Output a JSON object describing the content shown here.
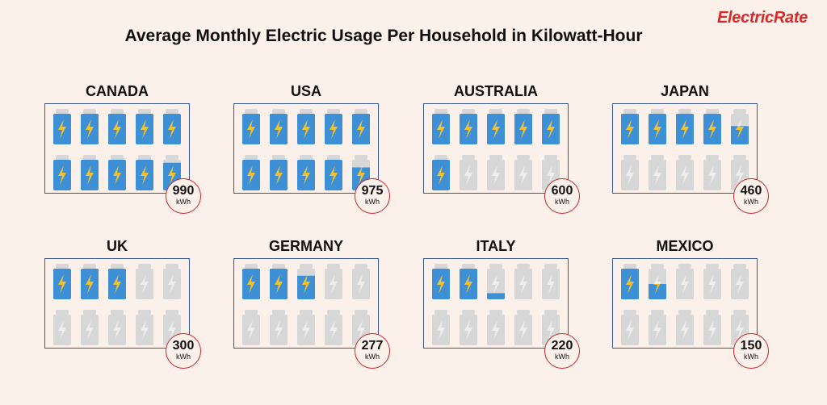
{
  "title": "Average Monthly Electric Usage Per Household in Kilowatt-Hour",
  "brand": "ElectricRate",
  "unit_label": "kWh",
  "colors": {
    "can_full": "#3d8fd6",
    "can_empty": "#d7d7d7",
    "bolt": "#f2c12e",
    "frame": "#3a5a8f",
    "badge_border": "#c62828"
  },
  "chart_data": {
    "type": "pictograph",
    "title": "Average Monthly Electric Usage Per Household in Kilowatt-Hour",
    "unit": "kWh",
    "icons_per_panel": 10,
    "units_per_icon": 100,
    "categories": [
      "CANADA",
      "USA",
      "AUSTRALIA",
      "JAPAN",
      "UK",
      "GERMANY",
      "ITALY",
      "MEXICO"
    ],
    "values": [
      990,
      975,
      600,
      460,
      300,
      277,
      220,
      150
    ]
  }
}
